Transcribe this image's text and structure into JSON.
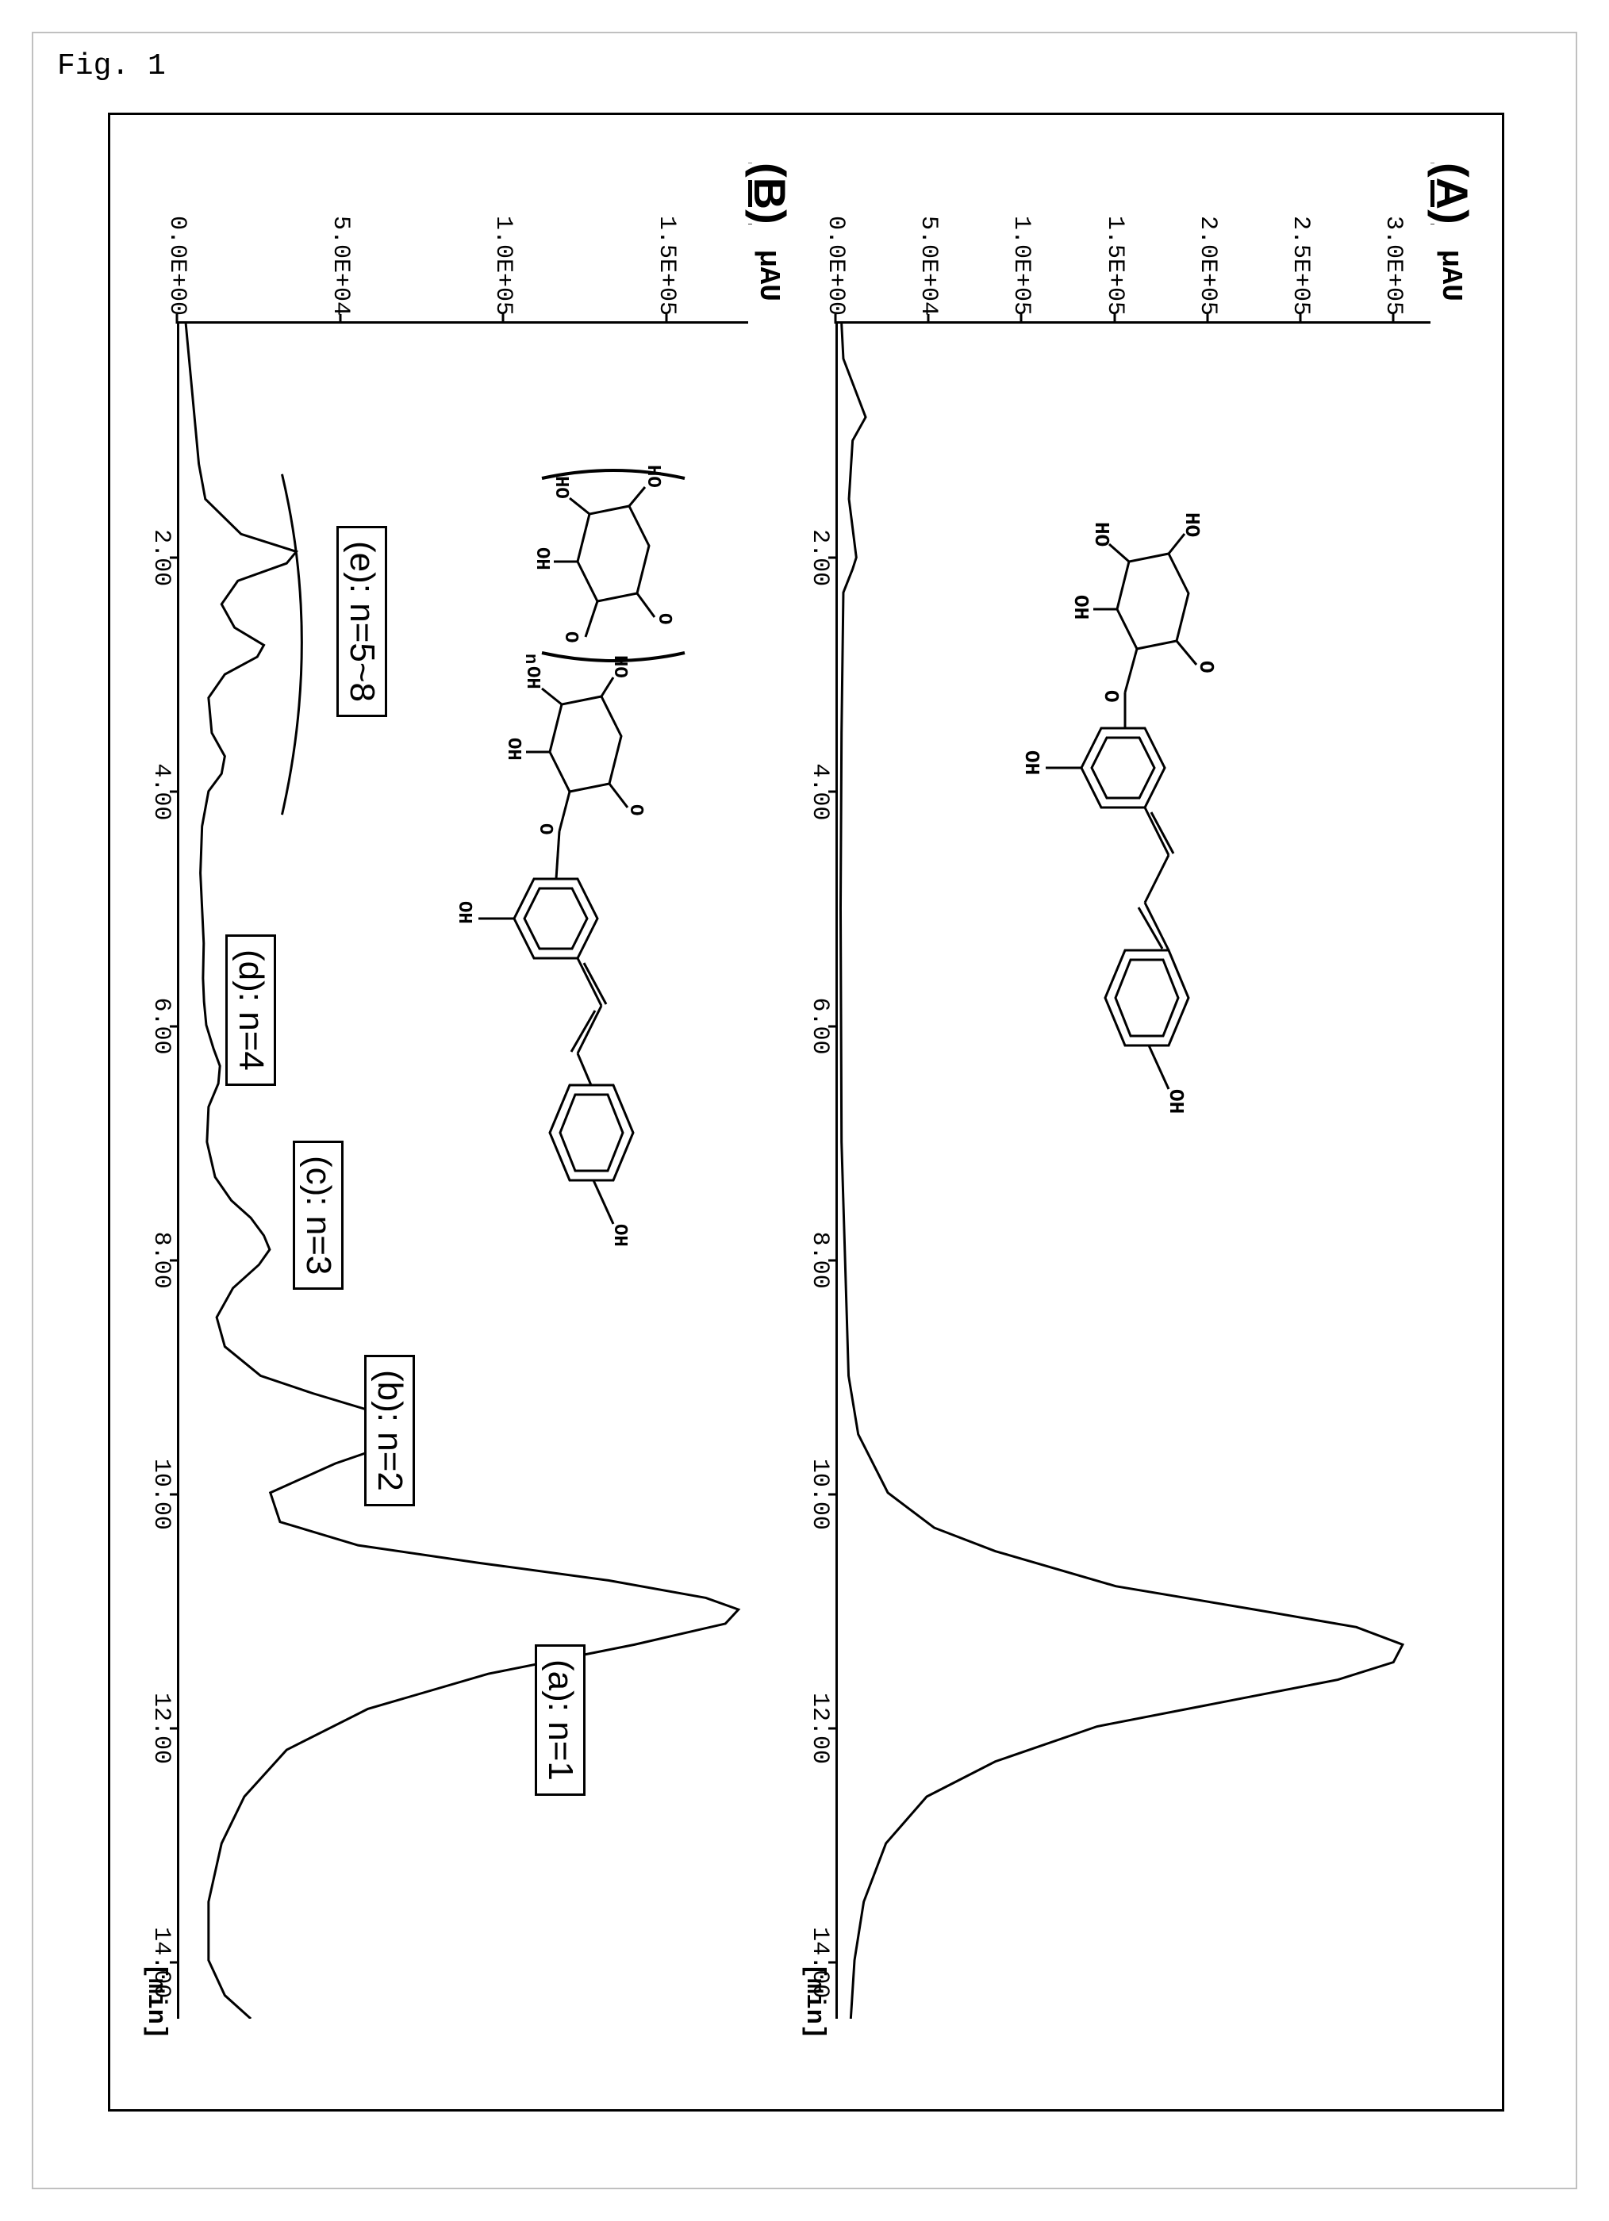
{
  "figure_caption": "Fig. 1",
  "panels": {
    "A": {
      "label": "(A)",
      "y_unit": "μAU",
      "x_unit": "[min]",
      "plot": {
        "xlim": [
          0,
          14.5
        ],
        "ylim": [
          0,
          320000
        ],
        "xticks": [
          2.0,
          4.0,
          6.0,
          8.0,
          10.0,
          12.0,
          14.0
        ],
        "xtick_labels": [
          "2.00",
          "4.00",
          "6.00",
          "8.00",
          "10.00",
          "12.00",
          "14.00"
        ],
        "yticks": [
          0,
          50000,
          100000,
          150000,
          200000,
          250000,
          300000
        ],
        "ytick_labels": [
          "0.0E+00",
          "5.0E+04",
          "1.0E+05",
          "1.5E+05",
          "2.0E+05",
          "2.5E+05",
          "3.0E+05"
        ],
        "line_color": "#000000",
        "line_width": 2,
        "background": "#ffffff",
        "curve": [
          [
            0.0,
            2000
          ],
          [
            0.3,
            3000
          ],
          [
            0.8,
            15000
          ],
          [
            1.0,
            8000
          ],
          [
            1.5,
            6000
          ],
          [
            2.0,
            10000
          ],
          [
            2.1,
            8000
          ],
          [
            2.3,
            3000
          ],
          [
            3.5,
            2000
          ],
          [
            5.0,
            1500
          ],
          [
            7.0,
            2000
          ],
          [
            9.0,
            5800
          ],
          [
            9.5,
            11000
          ],
          [
            10.0,
            27000
          ],
          [
            10.3,
            52000
          ],
          [
            10.5,
            85000
          ],
          [
            10.8,
            150000
          ],
          [
            11.0,
            225000
          ],
          [
            11.15,
            280000
          ],
          [
            11.3,
            305000
          ],
          [
            11.45,
            300000
          ],
          [
            11.6,
            270000
          ],
          [
            11.8,
            205000
          ],
          [
            12.0,
            140000
          ],
          [
            12.3,
            85000
          ],
          [
            12.6,
            48000
          ],
          [
            13.0,
            26000
          ],
          [
            13.5,
            14000
          ],
          [
            14.0,
            9000
          ],
          [
            14.5,
            7000
          ]
        ]
      }
    },
    "B": {
      "label": "(B)",
      "y_unit": "μAU",
      "x_unit": "[min]",
      "plot": {
        "xlim": [
          0,
          14.5
        ],
        "ylim": [
          0,
          175000
        ],
        "xticks": [
          2.0,
          4.0,
          6.0,
          8.0,
          10.0,
          12.0,
          14.0
        ],
        "xtick_labels": [
          "2.00",
          "4.00",
          "6.00",
          "8.00",
          "10.00",
          "12.00",
          "14.00"
        ],
        "yticks": [
          0,
          50000,
          100000,
          150000
        ],
        "ytick_labels": [
          "0.0E+00",
          "5.0E+04",
          "1.0E+05",
          "1.5E+05"
        ],
        "line_color": "#000000",
        "line_width": 2,
        "background": "#ffffff",
        "curve": [
          [
            0.0,
            2000
          ],
          [
            0.6,
            4000
          ],
          [
            1.2,
            6000
          ],
          [
            1.5,
            8000
          ],
          [
            1.8,
            19000
          ],
          [
            1.95,
            36000
          ],
          [
            2.05,
            33000
          ],
          [
            2.2,
            18000
          ],
          [
            2.4,
            13000
          ],
          [
            2.6,
            17000
          ],
          [
            2.75,
            26000
          ],
          [
            2.85,
            24000
          ],
          [
            3.0,
            14000
          ],
          [
            3.2,
            9000
          ],
          [
            3.5,
            10000
          ],
          [
            3.7,
            14000
          ],
          [
            3.85,
            13000
          ],
          [
            4.0,
            9000
          ],
          [
            4.3,
            7000
          ],
          [
            4.7,
            6500
          ],
          [
            5.0,
            7000
          ],
          [
            5.3,
            7500
          ],
          [
            5.6,
            7300
          ],
          [
            5.8,
            7600
          ],
          [
            6.0,
            8300
          ],
          [
            6.2,
            10500
          ],
          [
            6.35,
            12500
          ],
          [
            6.5,
            12000
          ],
          [
            6.7,
            9000
          ],
          [
            7.0,
            8500
          ],
          [
            7.3,
            11000
          ],
          [
            7.5,
            16000
          ],
          [
            7.65,
            22000
          ],
          [
            7.8,
            26000
          ],
          [
            7.92,
            27800
          ],
          [
            8.05,
            24500
          ],
          [
            8.25,
            16500
          ],
          [
            8.5,
            11500
          ],
          [
            8.75,
            14000
          ],
          [
            9.0,
            25000
          ],
          [
            9.15,
            41000
          ],
          [
            9.3,
            59000
          ],
          [
            9.42,
            71500
          ],
          [
            9.55,
            69000
          ],
          [
            9.75,
            48000
          ],
          [
            10.0,
            28000
          ],
          [
            10.25,
            31000
          ],
          [
            10.45,
            55000
          ],
          [
            10.6,
            92000
          ],
          [
            10.75,
            132000
          ],
          [
            10.9,
            162000
          ],
          [
            11.0,
            172000
          ],
          [
            11.12,
            168000
          ],
          [
            11.3,
            140000
          ],
          [
            11.55,
            95000
          ],
          [
            11.85,
            58000
          ],
          [
            12.2,
            33000
          ],
          [
            12.6,
            20000
          ],
          [
            13.0,
            13000
          ],
          [
            13.5,
            9000
          ],
          [
            14.0,
            9000
          ],
          [
            14.3,
            14000
          ],
          [
            14.5,
            22000
          ]
        ]
      },
      "annotations": {
        "a": "(a): n=1",
        "b": "(b): n=2",
        "c": "(c): n=3",
        "d": "(d): n=4",
        "e": "(e): n=5~8"
      }
    }
  },
  "molecules": {
    "A_labels": [
      "HO",
      "HO",
      "OH",
      "O",
      "O",
      "OH",
      "OH"
    ],
    "B_labels": [
      "HO",
      "HO",
      "OH",
      "O",
      "HO",
      "OH",
      "OH",
      "O",
      "O",
      "n",
      "OH",
      "OH"
    ]
  },
  "colors": {
    "axis": "#000000",
    "text": "#000000",
    "background": "#ffffff",
    "border": "#c0c0c0"
  },
  "fonts": {
    "caption": {
      "family": "Courier New",
      "size_pt": 28
    },
    "panel_label": {
      "family": "Arial",
      "size_pt": 42,
      "weight": "bold",
      "underline": true
    },
    "tick": {
      "family": "Courier New",
      "size_pt": 22
    },
    "annotation": {
      "family": "Arial",
      "size_pt": 33
    }
  }
}
